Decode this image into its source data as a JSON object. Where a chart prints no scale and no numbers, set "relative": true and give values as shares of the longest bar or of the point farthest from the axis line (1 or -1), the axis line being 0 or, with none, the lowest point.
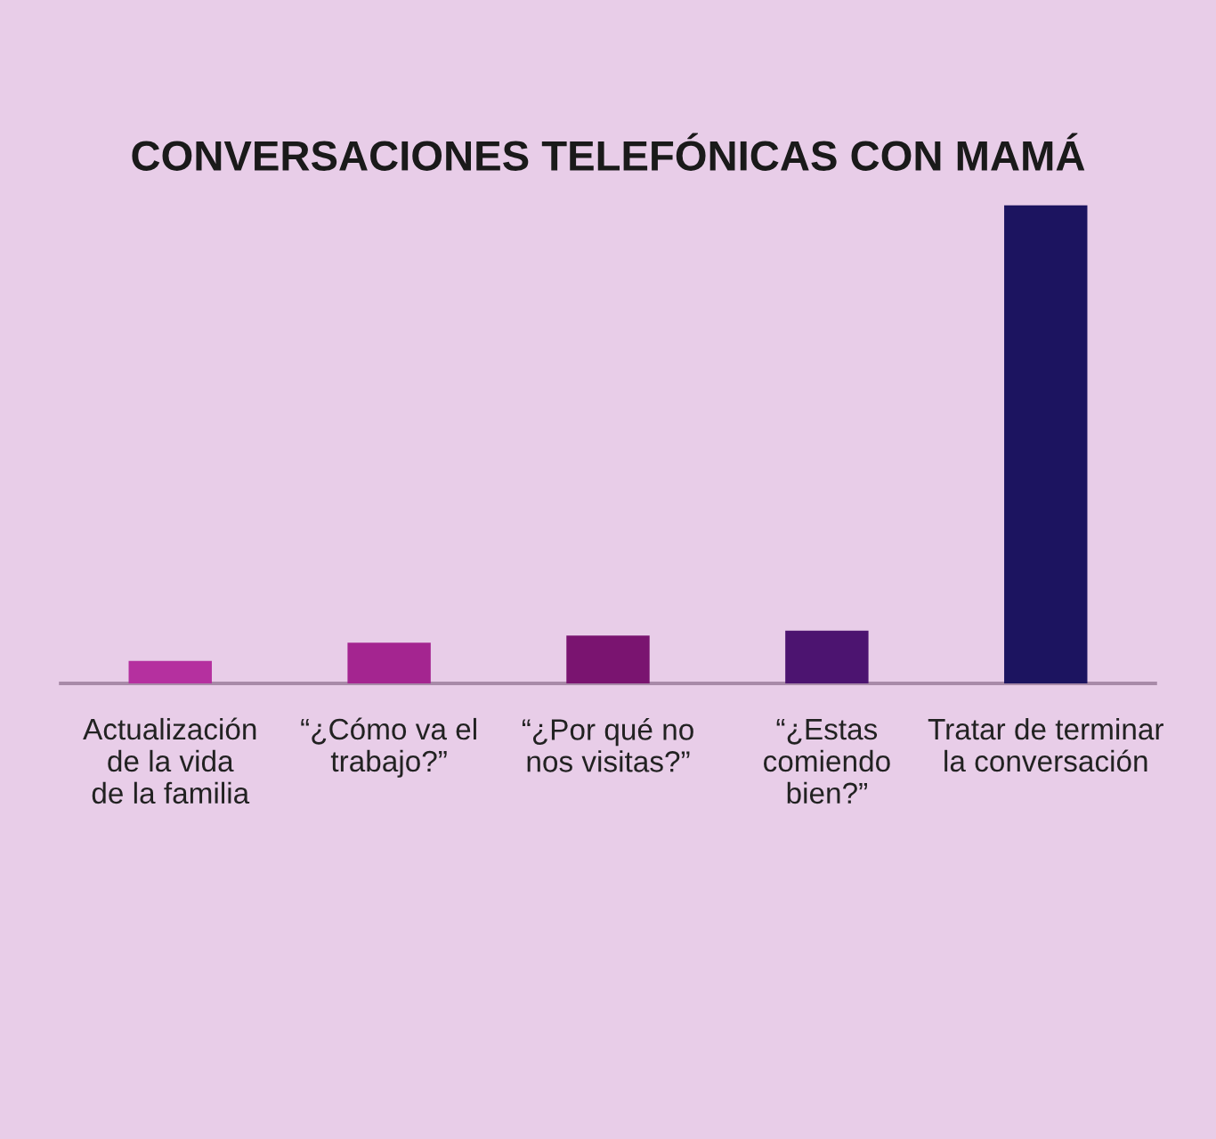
{
  "chart_data": {
    "type": "bar",
    "title": "CONVERSACIONES TELEFÓNICAS CON MAMÁ",
    "categories": [
      "Actualización\nde la vida\nde la familia",
      "“¿Cómo va el\ntrabajo?”",
      "“¿Por qué no\nnos visitas?”",
      "“¿Estas\ncomiendo\nbien?”",
      "Tratar de terminar\nla conversación"
    ],
    "values": [
      0.047,
      0.085,
      0.1,
      0.11,
      1
    ],
    "colors": [
      "#b5309f",
      "#a42590",
      "#7a1470",
      "#4c1470",
      "#1c1460"
    ],
    "relative": true,
    "grid": false,
    "legend": false
  }
}
